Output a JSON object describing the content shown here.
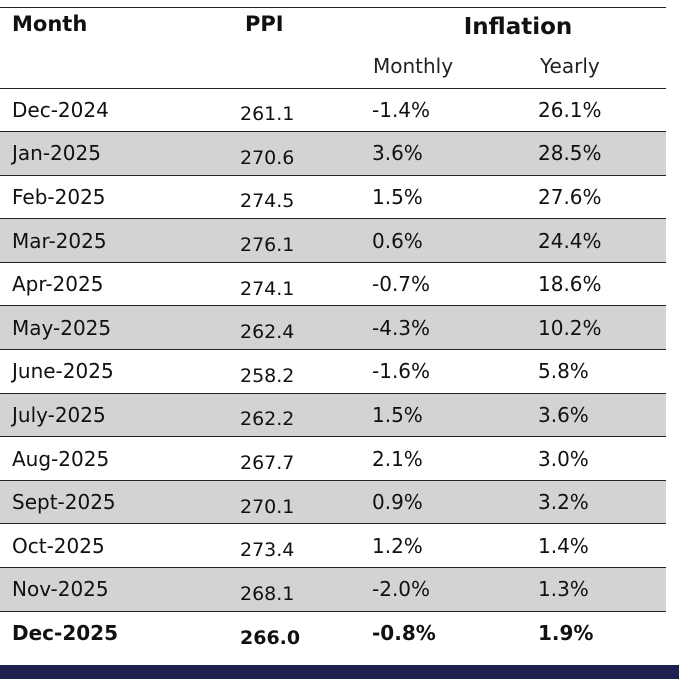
{
  "table": {
    "headers": {
      "month": "Month",
      "ppi": "PPI",
      "inflation": "Inflation",
      "monthly": "Monthly",
      "yearly": "Yearly"
    },
    "rows": [
      {
        "month": "Dec-2024",
        "ppi": "261.1",
        "monthly": "-1.4%",
        "yearly": "26.1%"
      },
      {
        "month": "Jan-2025",
        "ppi": "270.6",
        "monthly": "3.6%",
        "yearly": "28.5%"
      },
      {
        "month": "Feb-2025",
        "ppi": "274.5",
        "monthly": "1.5%",
        "yearly": "27.6%"
      },
      {
        "month": "Mar-2025",
        "ppi": "276.1",
        "monthly": "0.6%",
        "yearly": "24.4%"
      },
      {
        "month": "Apr-2025",
        "ppi": "274.1",
        "monthly": "-0.7%",
        "yearly": "18.6%"
      },
      {
        "month": "May-2025",
        "ppi": "262.4",
        "monthly": "-4.3%",
        "yearly": "10.2%"
      },
      {
        "month": "June-2025",
        "ppi": "258.2",
        "monthly": "-1.6%",
        "yearly": "5.8%"
      },
      {
        "month": "July-2025",
        "ppi": "262.2",
        "monthly": "1.5%",
        "yearly": "3.6%"
      },
      {
        "month": "Aug-2025",
        "ppi": "267.7",
        "monthly": "2.1%",
        "yearly": "3.0%"
      },
      {
        "month": "Sept-2025",
        "ppi": "270.1",
        "monthly": "0.9%",
        "yearly": "3.2%"
      },
      {
        "month": "Oct-2025",
        "ppi": "273.4",
        "monthly": "1.2%",
        "yearly": "1.4%"
      },
      {
        "month": "Nov-2025",
        "ppi": "268.1",
        "monthly": "-2.0%",
        "yearly": "1.3%"
      },
      {
        "month": "Dec-2025",
        "ppi": "266.0",
        "monthly": "-0.8%",
        "yearly": "1.9%"
      }
    ]
  },
  "colors": {
    "alt_row": "#d3d3d3",
    "footer_bar": "#1e2050",
    "rule": "#222222"
  }
}
